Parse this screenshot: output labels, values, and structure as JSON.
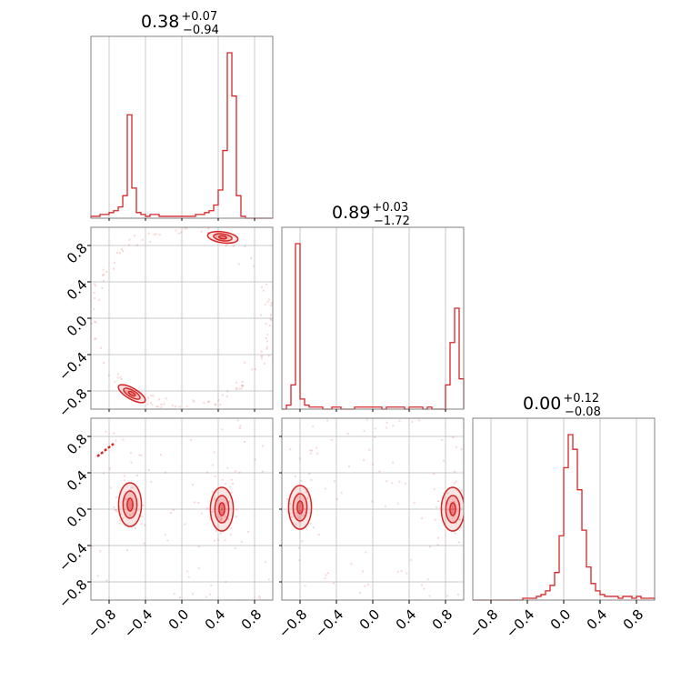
{
  "chart_data": {
    "type": "corner",
    "color": "#d62728",
    "axis_range": [
      -1.0,
      1.0
    ],
    "tick_labels": [
      "−0.8",
      "−0.4",
      "0.0",
      "0.4",
      "0.8"
    ],
    "tick_values": [
      -0.8,
      -0.4,
      0.0,
      0.4,
      0.8
    ],
    "grid": true,
    "titles": [
      {
        "value": "0.38",
        "plus": "+0.07",
        "minus": "−0.94"
      },
      {
        "value": "0.89",
        "plus": "+0.03",
        "minus": "−1.72"
      },
      {
        "value": "0.00",
        "plus": "+0.12",
        "minus": "−0.08"
      }
    ],
    "histograms": [
      {
        "param": 0,
        "bin_edges_start": -1.0,
        "bin_width": 0.05,
        "counts": [
          1,
          1,
          2,
          2,
          3,
          4,
          6,
          12,
          55,
          16,
          3,
          2,
          1,
          2,
          2,
          1,
          1,
          1,
          1,
          1,
          1,
          1,
          1,
          2,
          2,
          3,
          4,
          7,
          15,
          36,
          88,
          65,
          12,
          1,
          0,
          0,
          0,
          0,
          0,
          0
        ]
      },
      {
        "param": 1,
        "bin_edges_start": -1.0,
        "bin_width": 0.05,
        "counts": [
          0,
          2,
          12,
          82,
          5,
          2,
          1,
          1,
          1,
          0,
          0,
          1,
          1,
          0,
          0,
          0,
          1,
          1,
          1,
          1,
          1,
          1,
          0,
          1,
          1,
          1,
          1,
          0,
          1,
          1,
          1,
          0,
          1,
          0,
          0,
          0,
          12,
          33,
          50,
          15,
          10,
          7
        ]
      },
      {
        "param": 2,
        "bin_edges_start": -1.0,
        "bin_width": 0.05,
        "counts": [
          0,
          0,
          0,
          0,
          0,
          0,
          0,
          0,
          0,
          0,
          0,
          1,
          1,
          1,
          2,
          3,
          5,
          8,
          15,
          35,
          72,
          90,
          82,
          60,
          38,
          18,
          9,
          5,
          3,
          2,
          2,
          2,
          1,
          2,
          2,
          1,
          2,
          1,
          1,
          1
        ]
      }
    ],
    "pair_modes": [
      {
        "pair": [
          0,
          1
        ],
        "modes": [
          {
            "x": 0.45,
            "y": 0.89
          },
          {
            "x": -0.55,
            "y": -0.83
          }
        ]
      },
      {
        "pair": [
          0,
          2
        ],
        "modes": [
          {
            "x": -0.57,
            "y": 0.05
          },
          {
            "x": 0.44,
            "y": 0.0
          }
        ]
      },
      {
        "pair": [
          1,
          2
        ],
        "modes": [
          {
            "x": -0.8,
            "y": 0.02
          },
          {
            "x": 0.88,
            "y": 0.0
          }
        ]
      }
    ]
  }
}
